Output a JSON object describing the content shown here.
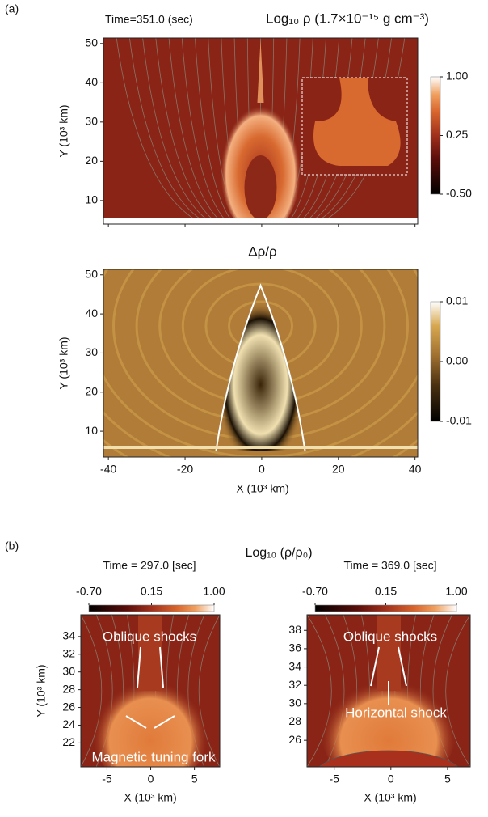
{
  "panel_labels": [
    "(a)",
    "(b)"
  ],
  "panel_b_title": "Log₁₀ (ρ/ρ₀)",
  "chart_data": [
    {
      "type": "heatmap",
      "title": "Time=351.0 (sec)",
      "colorbar_label": "Log₁₀ ρ (1.7×10⁻¹⁵ g cm⁻³)",
      "ylabel": "Y (10³ km)",
      "xlim": [
        -41.3,
        40.7
      ],
      "ylim": [
        4,
        51.4
      ],
      "xticks": [
        -40,
        -20,
        0,
        20,
        40
      ],
      "yticks": [
        10,
        20,
        30,
        40,
        50
      ],
      "colorbar": {
        "lim": [
          -0.5,
          1
        ],
        "ticks": [
          {
            "value": -0.5,
            "label": "-0.50"
          },
          0.25,
          {
            "value": 1,
            "label": "1.00"
          }
        ]
      }
    },
    {
      "type": "heatmap",
      "title": "Δρ/ρ",
      "xlabel": "X (10³ km)",
      "ylabel": "Y (10³ km)",
      "xlim": [
        -41.3,
        40.7
      ],
      "ylim": [
        3.4,
        51.4
      ],
      "xticks": [
        -40,
        -20,
        0,
        20,
        40
      ],
      "yticks": [
        10,
        20,
        30,
        40,
        50
      ],
      "colorbar": {
        "lim": [
          -0.01,
          0.01
        ],
        "ticks": [
          -0.01,
          {
            "value": 0,
            "label": "0.00"
          },
          0.01
        ]
      }
    },
    {
      "type": "heatmap",
      "title": "Time = 297.0 [sec]",
      "xlabel": "X (10³ km)",
      "ylabel": "Y (10³ km)",
      "xlim": [
        -8,
        7.9
      ],
      "ylim": [
        19.3,
        36.45
      ],
      "xticks": [
        -5,
        0,
        5
      ],
      "yticks": [
        22,
        24,
        26,
        28,
        30,
        32,
        34
      ],
      "colorbar": {
        "lim": [
          -0.7,
          1
        ],
        "ticks": [
          {
            "value": -0.7,
            "label": "-0.70"
          },
          0.15,
          {
            "value": 1,
            "label": "1.00"
          }
        ]
      },
      "annotations": [
        "Oblique shocks",
        "Magnetic tuning fork"
      ]
    },
    {
      "type": "heatmap",
      "title": "Time = 369.0 [sec]",
      "xlabel": "X (10³ km)",
      "xlim": [
        -7.4,
        7.0
      ],
      "ylim": [
        23.1,
        39.7
      ],
      "xticks": [
        -5,
        0,
        5
      ],
      "yticks": [
        26,
        28,
        30,
        32,
        34,
        36,
        38
      ],
      "colorbar": {
        "lim": [
          -0.7,
          1
        ],
        "ticks": [
          {
            "value": -0.7,
            "label": "-0.70"
          },
          0.15,
          {
            "value": 1,
            "label": "1.00"
          }
        ]
      },
      "annotations": [
        "Oblique shocks",
        "Horizontal shock"
      ]
    }
  ]
}
